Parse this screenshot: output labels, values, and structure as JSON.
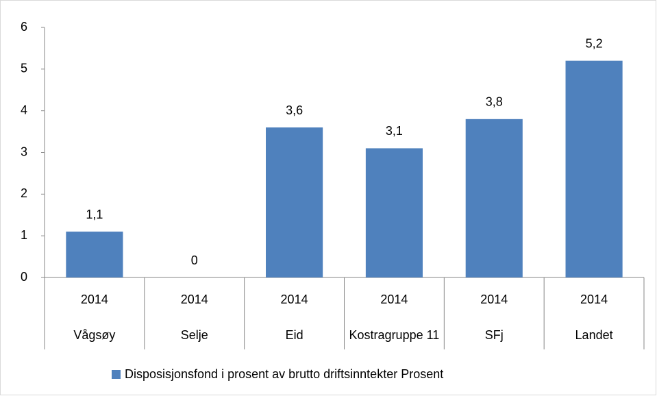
{
  "chart_data": {
    "type": "bar",
    "categories": [
      [
        "2014",
        "Vågsøy"
      ],
      [
        "2014",
        "Selje"
      ],
      [
        "2014",
        "Eid"
      ],
      [
        "2014",
        "Kostragruppe 11"
      ],
      [
        "2014",
        "SFj"
      ],
      [
        "2014",
        "Landet"
      ]
    ],
    "series": [
      {
        "name": "Disposisjonsfond i prosent av brutto driftsinntekter Prosent",
        "color": "#4f81bd",
        "values": [
          1.1,
          0,
          3.6,
          3.1,
          3.8,
          5.2
        ],
        "value_labels": [
          "1,1",
          "0",
          "3,6",
          "3,1",
          "3,8",
          "5,2"
        ]
      }
    ],
    "ylim": [
      0,
      6
    ],
    "yticks": [
      0,
      1,
      2,
      3,
      4,
      5,
      6
    ],
    "grid": false,
    "legend": "bottom"
  }
}
